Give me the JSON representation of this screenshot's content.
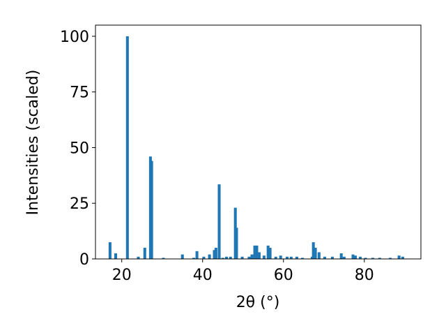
{
  "chart_data": {
    "type": "bar",
    "x_label": "2θ (°)",
    "y_label": "Intensities (scaled)",
    "color": "#1f77b4",
    "x": [
      17.1,
      18.5,
      21.4,
      24.1,
      25.7,
      27.1,
      27.4,
      30.3,
      35.0,
      37.8,
      38.6,
      40.3,
      41.7,
      42.9,
      43.3,
      44.1,
      45.0,
      45.9,
      46.9,
      48.1,
      48.4,
      49.8,
      51.5,
      52.2,
      52.9,
      53.4,
      54.0,
      55.2,
      56.2,
      56.7,
      58.1,
      59.3,
      60.9,
      61.9,
      63.3,
      64.7,
      67.1,
      67.4,
      67.9,
      68.8,
      70.2,
      72.1,
      74.3,
      75.0,
      77.2,
      77.8,
      79.0,
      80.3,
      82.1,
      83.8,
      86.4,
      88.6,
      89.5
    ],
    "values": [
      7.5,
      2.5,
      100,
      1,
      5,
      46,
      44,
      0.5,
      2,
      0.5,
      3.5,
      1,
      2,
      4,
      5,
      33.5,
      0.5,
      1,
      1,
      23,
      14,
      1,
      1,
      2,
      6,
      6,
      3,
      1.5,
      6,
      5,
      1,
      1.5,
      1,
      1,
      1,
      0.5,
      1,
      7.5,
      5,
      3,
      1,
      1,
      2.5,
      1,
      2,
      1.5,
      1,
      0.5,
      0.5,
      0.5,
      0.5,
      1.5,
      1
    ],
    "xlim": [
      13.5,
      94
    ],
    "ylim": [
      0,
      105
    ],
    "xticks": [
      20,
      40,
      60,
      80
    ],
    "yticks": [
      0,
      25,
      50,
      75,
      100
    ]
  }
}
